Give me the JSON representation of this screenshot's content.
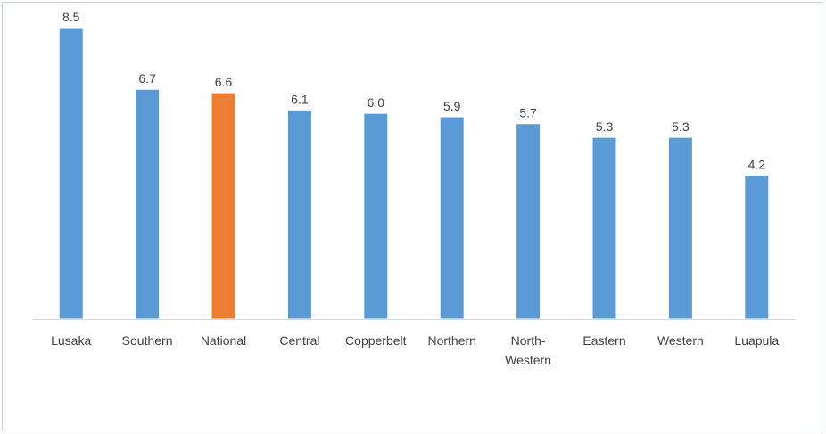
{
  "chart_data": {
    "type": "bar",
    "categories": [
      "Lusaka",
      "Southern",
      "National",
      "Central",
      "Copperbelt",
      "Northern",
      "North-Western",
      "Eastern",
      "Western",
      "Luapula"
    ],
    "category_lines": [
      [
        "Lusaka"
      ],
      [
        "Southern"
      ],
      [
        "National"
      ],
      [
        "Central"
      ],
      [
        "Copperbelt"
      ],
      [
        "Northern"
      ],
      [
        "North-",
        "Western"
      ],
      [
        "Eastern"
      ],
      [
        "Western"
      ],
      [
        "Luapula"
      ]
    ],
    "values": [
      8.5,
      6.7,
      6.6,
      6.1,
      6.0,
      5.9,
      5.7,
      5.3,
      5.3,
      4.2
    ],
    "value_labels": [
      "8.5",
      "6.7",
      "6.6",
      "6.1",
      "6.0",
      "5.9",
      "5.7",
      "5.3",
      "5.3",
      "4.2"
    ],
    "ylim": [
      0,
      8.5
    ],
    "grid": false,
    "legend": "none",
    "colors": {
      "default": "#5b9bd5",
      "highlight": "#ed7d31",
      "default_edge": "#ffffff",
      "axis": "#d9d9d9"
    },
    "highlight_category": "National"
  }
}
